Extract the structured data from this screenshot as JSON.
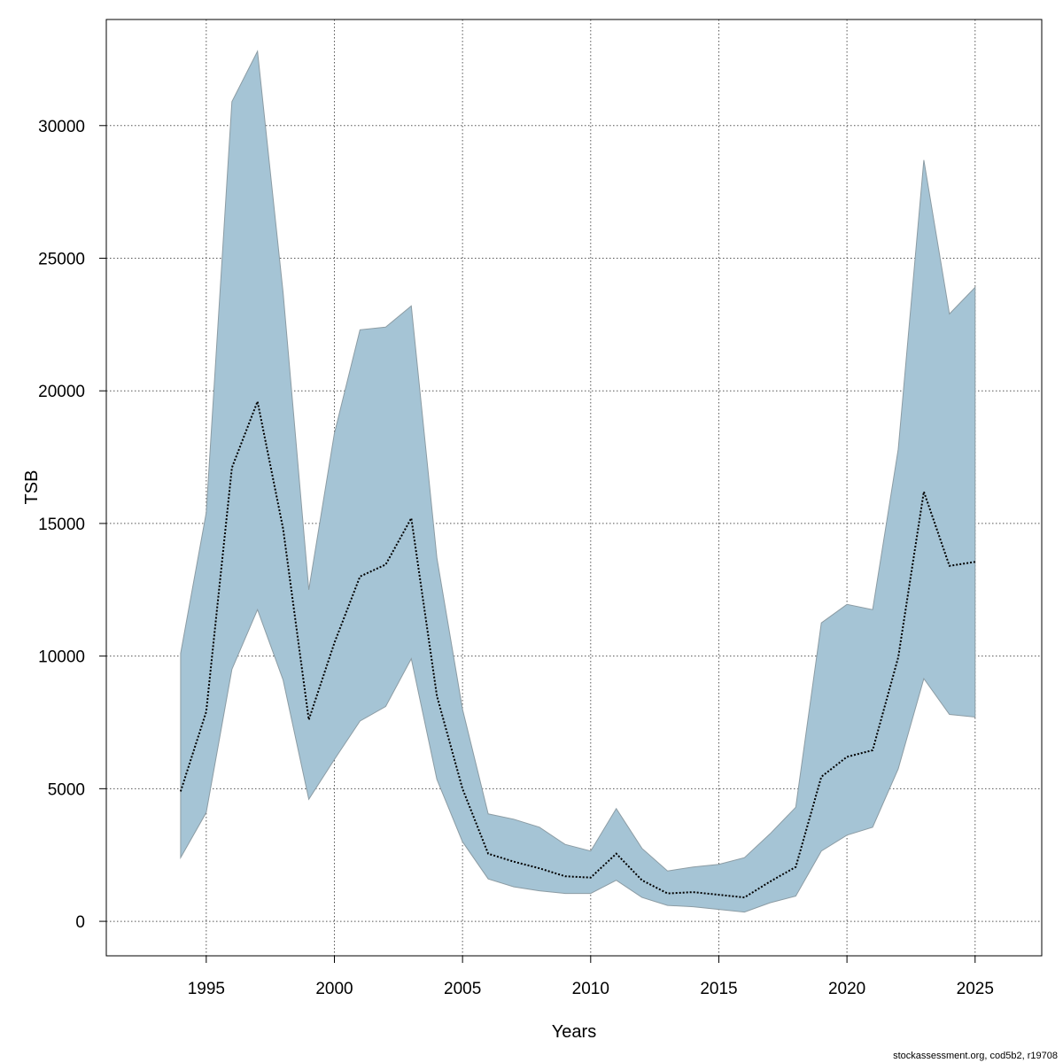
{
  "chart_data": {
    "type": "area",
    "xlabel": "Years",
    "ylabel": "TSB",
    "xlim": [
      1991.1,
      2027.6
    ],
    "ylim": [
      -1300,
      34000
    ],
    "x_ticks": [
      1995,
      2000,
      2005,
      2010,
      2015,
      2020,
      2025
    ],
    "y_ticks": [
      0,
      5000,
      10000,
      15000,
      20000,
      25000,
      30000
    ],
    "grid": true,
    "colors": {
      "band_fill": "#a5c4d5",
      "band_stroke": "#8c9ca4",
      "estimate_line": "#000000"
    },
    "x": [
      1994,
      1995,
      1996,
      1997,
      1998,
      1999,
      2000,
      2001,
      2002,
      2003,
      2004,
      2005,
      2006,
      2007,
      2008,
      2009,
      2010,
      2011,
      2012,
      2013,
      2014,
      2015,
      2016,
      2017,
      2018,
      2019,
      2020,
      2021,
      2022,
      2023,
      2024,
      2025
    ],
    "series": [
      {
        "role": "upper",
        "values": [
          10100,
          15400,
          30900,
          32800,
          23700,
          12500,
          18400,
          22300,
          22400,
          23200,
          13700,
          8000,
          4050,
          3850,
          3550,
          2900,
          2650,
          4250,
          2750,
          1900,
          2050,
          2150,
          2400,
          3300,
          4300,
          11250,
          11950,
          11750,
          17800,
          28700,
          22900,
          23900
        ]
      },
      {
        "role": "estimate",
        "values": [
          4900,
          7900,
          17100,
          19600,
          14800,
          7600,
          10500,
          13000,
          13450,
          15200,
          8500,
          5000,
          2550,
          2250,
          2000,
          1700,
          1650,
          2550,
          1550,
          1050,
          1100,
          1000,
          900,
          1500,
          2050,
          5450,
          6200,
          6450,
          9950,
          16200,
          13400,
          13550
        ]
      },
      {
        "role": "lower",
        "values": [
          2400,
          4100,
          9500,
          11750,
          9100,
          4600,
          6100,
          7550,
          8100,
          9900,
          5350,
          3000,
          1600,
          1300,
          1150,
          1050,
          1050,
          1550,
          900,
          600,
          550,
          450,
          350,
          700,
          950,
          2650,
          3250,
          3550,
          5750,
          9150,
          7800,
          7700
        ]
      }
    ]
  },
  "footnote": "stockassessment.org, cod5b2, r19708"
}
